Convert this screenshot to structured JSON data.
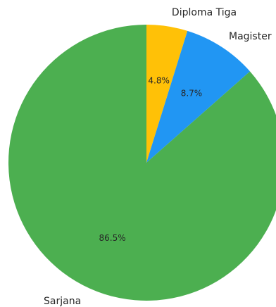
{
  "chart_data": {
    "type": "pie",
    "slices": [
      {
        "label": "Diploma Tiga",
        "value": 4.8,
        "pct_label": "4.8%",
        "color": "#FFC107"
      },
      {
        "label": "Magister",
        "value": 8.7,
        "pct_label": "8.7%",
        "color": "#2196F3"
      },
      {
        "label": "Sarjana",
        "value": 86.5,
        "pct_label": "86.5%",
        "color": "#4CAF50"
      }
    ],
    "start_angle": "top, clockwise"
  }
}
